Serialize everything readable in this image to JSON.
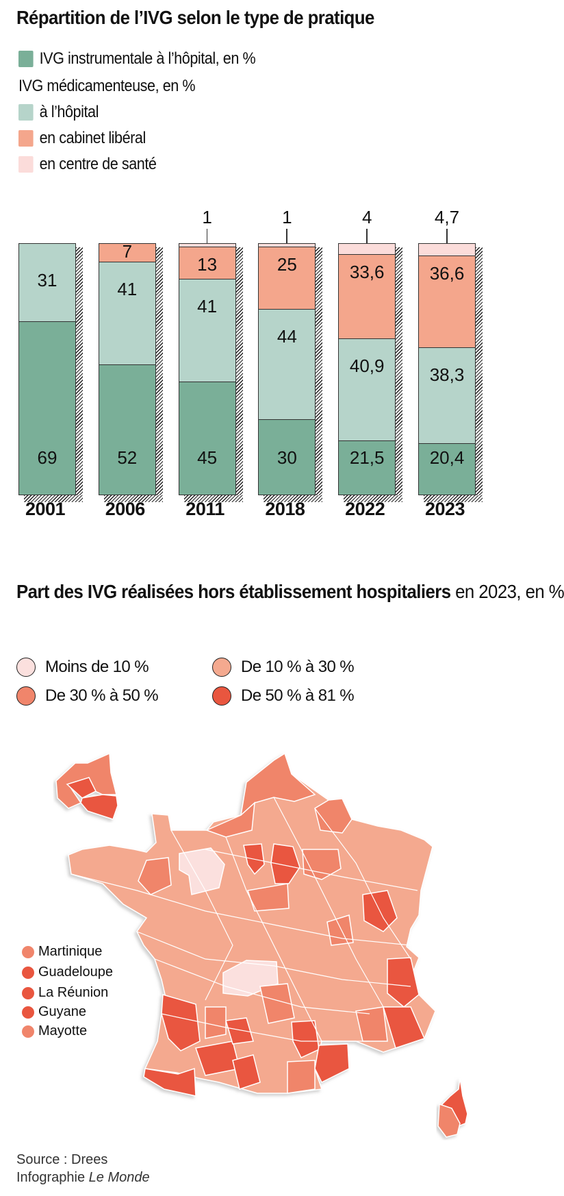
{
  "chart_data": [
    {
      "type": "bar",
      "stacked": true,
      "title": "Répartition de l’IVG selon le type de pratique",
      "categories": [
        "2001",
        "2006",
        "2011",
        "2018",
        "2022",
        "2023"
      ],
      "series": [
        {
          "name": "IVG instrumentale à l’hôpital, en %",
          "color": "#7aaf98",
          "values": [
            69,
            52,
            45,
            30,
            21.5,
            20.4
          ]
        },
        {
          "name": "IVG médicamenteuse à l’hôpital",
          "color": "#b6d4ca",
          "values": [
            31,
            41,
            41,
            44,
            40.9,
            38.3
          ]
        },
        {
          "name": "IVG médicamenteuse en cabinet libéral",
          "color": "#f4a68c",
          "values": [
            0,
            7,
            13,
            25,
            33.6,
            36.6
          ]
        },
        {
          "name": "IVG médicamenteuse en centre de santé",
          "color": "#fbdcda",
          "values": [
            0,
            0,
            1,
            1,
            4,
            4.7
          ]
        }
      ],
      "ylim": [
        0,
        100
      ],
      "grid": false,
      "legend_position": "top-left"
    },
    {
      "type": "choropleth",
      "title": "Part des IVG réalisées hors établissement hospitaliers en 2023, en %",
      "classes": [
        {
          "label": "Moins de 10 %",
          "color": "#fbe0de"
        },
        {
          "label": "De 10 % à 30 %",
          "color": "#f4a98f"
        },
        {
          "label": "De 30 % à 50 %",
          "color": "#f0856b"
        },
        {
          "label": "De 50 % à 81 %",
          "color": "#e9563f"
        }
      ],
      "overseas": [
        {
          "name": "Martinique",
          "class": "De 30 % à 50 %"
        },
        {
          "name": "Guadeloupe",
          "class": "De 50 % à 81 %"
        },
        {
          "name": "La Réunion",
          "class": "De 50 % à 81 %"
        },
        {
          "name": "Guyane",
          "class": "De 50 % à 81 %"
        },
        {
          "name": "Mayotte",
          "class": "De 30 % à 50 %"
        }
      ]
    }
  ],
  "chart1": {
    "title": "Répartition de l’IVG selon le type de pratique",
    "legend": {
      "instrumental": "IVG instrumentale à l’hôpital, en %",
      "medic_header": "IVG médicamenteuse, en %",
      "hopital": "à l’hôpital",
      "cabinet": "en cabinet libéral",
      "centre": "en centre de santé"
    },
    "colors": {
      "instrumental": "#7aaf98",
      "hopital": "#b6d4ca",
      "cabinet": "#f4a68c",
      "centre": "#fbdcda"
    },
    "bars": [
      {
        "year": "2001",
        "instrumental": "69",
        "hopital": "31",
        "cabinet": "",
        "centre": ""
      },
      {
        "year": "2006",
        "instrumental": "52",
        "hopital": "41",
        "cabinet": "7",
        "centre": ""
      },
      {
        "year": "2011",
        "instrumental": "45",
        "hopital": "41",
        "cabinet": "13",
        "centre": "1"
      },
      {
        "year": "2018",
        "instrumental": "30",
        "hopital": "44",
        "cabinet": "25",
        "centre": "1"
      },
      {
        "year": "2022",
        "instrumental": "21,5",
        "hopital": "40,9",
        "cabinet": "33,6",
        "centre": "4"
      },
      {
        "year": "2023",
        "instrumental": "20,4",
        "hopital": "38,3",
        "cabinet": "36,6",
        "centre": "4,7"
      }
    ]
  },
  "chart2": {
    "title_bold": "Part des IVG réalisées hors établissement hospitaliers",
    "title_regular": " en 2023, en %",
    "legend": [
      "Moins de 10 %",
      "De 10 % à 30 %",
      "De 30 % à 50 %",
      "De 50 % à 81 %"
    ],
    "overseas": [
      "Martinique",
      "Guadeloupe",
      "La Réunion",
      "Guyane",
      "Mayotte"
    ]
  },
  "footer": {
    "source": "Source : Drees",
    "credit_prefix": "Infographie ",
    "credit_italic": "Le Monde"
  }
}
